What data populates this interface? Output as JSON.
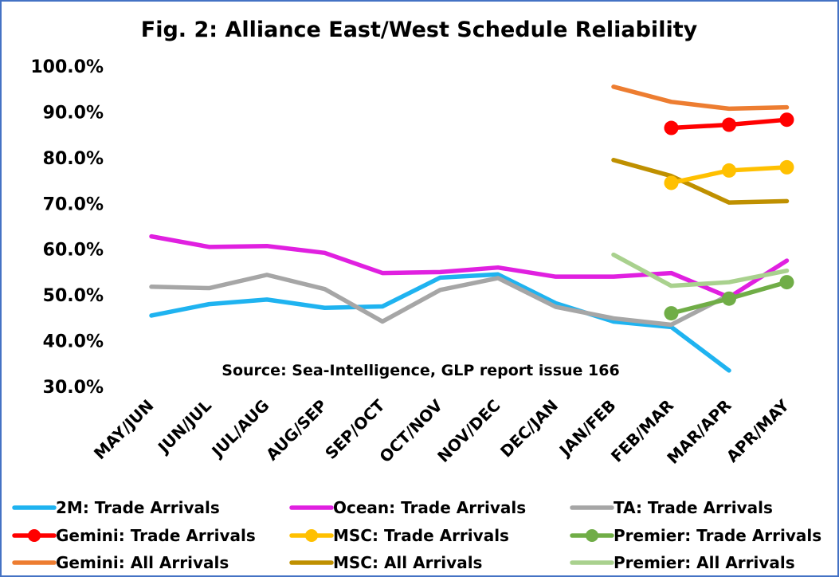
{
  "chart_data": {
    "type": "line",
    "title": "Fig. 2: Alliance East/West Schedule Reliability",
    "annotation": "Source: Sea-Intelligence, GLP report issue 166",
    "categories": [
      "MAY/JUN",
      "JUN/JUL",
      "JUL/AUG",
      "AUG/SEP",
      "SEP/OCT",
      "OCT/NOV",
      "NOV/DEC",
      "DEC/JAN",
      "JAN/FEB",
      "FEB/MAR",
      "MAR/APR",
      "APR/MAY"
    ],
    "ylim": [
      30,
      100
    ],
    "yticks": [
      "30.0%",
      "40.0%",
      "50.0%",
      "60.0%",
      "70.0%",
      "80.0%",
      "90.0%",
      "100.0%"
    ],
    "grid": false,
    "legend_position": "bottom",
    "series": [
      {
        "name": "2M: Trade Arrivals",
        "color": "#1fb3f0",
        "markers": false,
        "values": [
          45.5,
          48.0,
          49.0,
          47.2,
          47.5,
          53.8,
          54.5,
          48.2,
          44.2,
          43.0,
          33.5,
          null
        ]
      },
      {
        "name": "Ocean: Trade Arrivals",
        "color": "#e020e0",
        "markers": false,
        "values": [
          62.8,
          60.5,
          60.7,
          59.2,
          54.8,
          55.0,
          56.0,
          54.0,
          54.0,
          54.8,
          49.5,
          57.5
        ]
      },
      {
        "name": "TA: Trade Arrivals",
        "color": "#a6a6a6",
        "markers": false,
        "values": [
          51.8,
          51.5,
          54.4,
          51.3,
          44.2,
          51.1,
          53.7,
          47.4,
          44.9,
          43.5,
          50.0,
          null
        ]
      },
      {
        "name": "Gemini: Trade Arrivals",
        "color": "#ff0000",
        "markers": true,
        "values": [
          null,
          null,
          null,
          null,
          null,
          null,
          null,
          null,
          null,
          86.5,
          87.2,
          88.3
        ]
      },
      {
        "name": "MSC: Trade Arrivals",
        "color": "#ffc000",
        "markers": true,
        "values": [
          null,
          null,
          null,
          null,
          null,
          null,
          null,
          null,
          null,
          74.5,
          77.2,
          77.9
        ]
      },
      {
        "name": "Premier: Trade Arrivals",
        "color": "#70ad47",
        "markers": true,
        "values": [
          null,
          null,
          null,
          null,
          null,
          null,
          null,
          null,
          null,
          46.0,
          49.2,
          52.8
        ]
      },
      {
        "name": "Gemini: All Arrivals",
        "color": "#ed7d31",
        "markers": false,
        "values": [
          null,
          null,
          null,
          null,
          null,
          null,
          null,
          null,
          95.5,
          92.2,
          90.7,
          91.0
        ]
      },
      {
        "name": "MSC: All Arrivals",
        "color": "#bf9000",
        "markers": false,
        "values": [
          null,
          null,
          null,
          null,
          null,
          null,
          null,
          null,
          79.5,
          76.0,
          70.2,
          70.5
        ]
      },
      {
        "name": "Premier: All Arrivals",
        "color": "#a9d18e",
        "markers": false,
        "values": [
          null,
          null,
          null,
          null,
          null,
          null,
          null,
          null,
          58.8,
          52.0,
          52.8,
          55.3
        ]
      }
    ],
    "draw_order": [
      0,
      2,
      1,
      8,
      7,
      6,
      5,
      4,
      3
    ]
  }
}
